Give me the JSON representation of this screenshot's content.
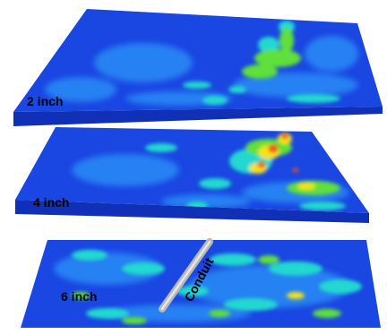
{
  "slices": [
    {
      "label": "2 inch"
    },
    {
      "label": "4 inch"
    },
    {
      "label": "6 inch"
    }
  ],
  "conduit": {
    "label": "Conduit",
    "color": "#b8b8b8"
  },
  "colors": {
    "background": "#ffffff",
    "low": "#1740e0",
    "low_mid": "#2a8cf5",
    "mid": "#22d8d0",
    "mid_high": "#5fe03a",
    "high": "#f4e21c",
    "peak": "#f0501a",
    "slab_edge": "#0a1e96"
  }
}
